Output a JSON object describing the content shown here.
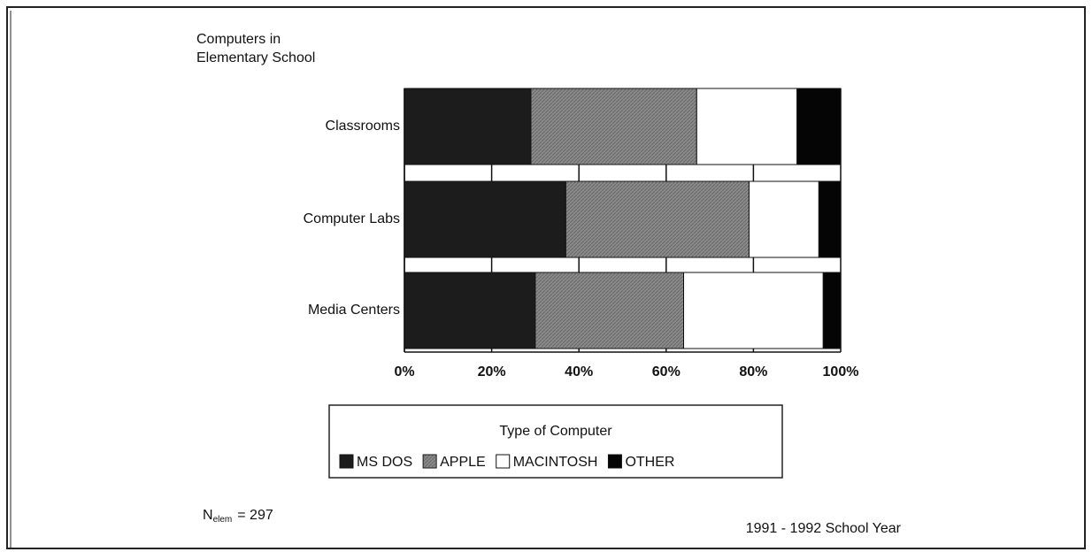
{
  "chart_data": {
    "type": "stacked-bar-horizontal",
    "title": [
      "Computers in",
      "Elementary School"
    ],
    "categories": [
      "Classrooms",
      "Computer Labs",
      "Media Centers"
    ],
    "series": [
      {
        "name": "MS DOS",
        "color": "#1c1c1c",
        "values": [
          29,
          37,
          30
        ]
      },
      {
        "name": "APPLE",
        "color": "#8a8a8a",
        "values": [
          38,
          42,
          34
        ]
      },
      {
        "name": "MACINTOSH",
        "color": "#ffffff",
        "values": [
          23,
          16,
          32
        ]
      },
      {
        "name": "OTHER",
        "color": "#050505",
        "values": [
          10,
          5,
          4
        ]
      }
    ],
    "xlim": [
      0,
      100
    ],
    "xticks": [
      {
        "value": 0,
        "label": "0%"
      },
      {
        "value": 20,
        "label": "20%"
      },
      {
        "value": 40,
        "label": "40%"
      },
      {
        "value": 60,
        "label": "60%"
      },
      {
        "value": 80,
        "label": "80%"
      },
      {
        "value": 100,
        "label": "100%"
      }
    ],
    "legend_title": "Type of Computer",
    "sample_note": {
      "symbol": "N",
      "subscript": "elem",
      "text": "= 297"
    },
    "footnote": "1991 - 1992 School Year"
  }
}
